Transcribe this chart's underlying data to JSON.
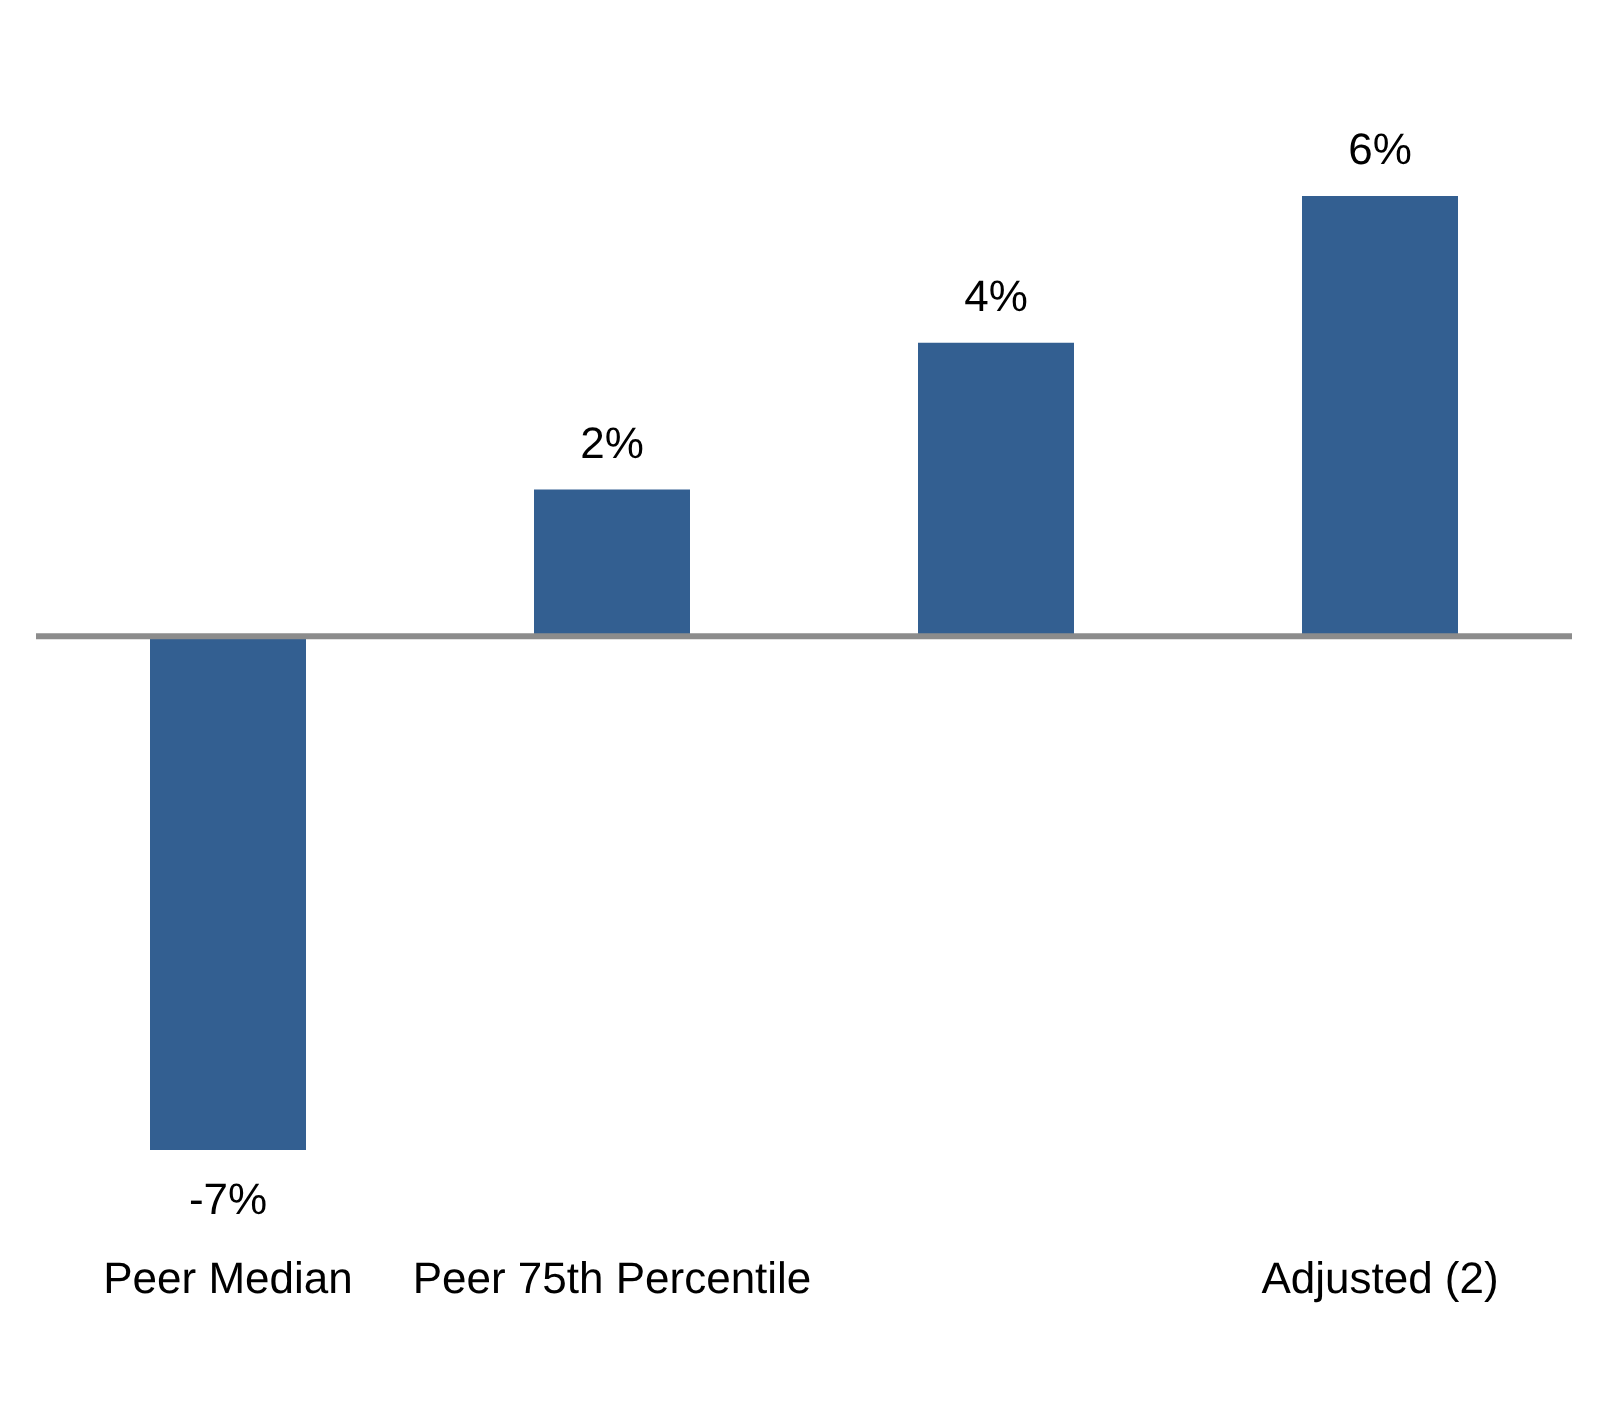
{
  "chart_data": {
    "type": "bar",
    "categories": [
      "Peer Median",
      "Peer 75th Percentile",
      null,
      "Adjusted (2)"
    ],
    "values": [
      -7,
      2,
      4,
      6
    ],
    "color": "#335f91",
    "value_labels": [
      "-7%",
      "2%",
      "4%",
      "6%"
    ],
    "grid": false,
    "legend": false
  }
}
